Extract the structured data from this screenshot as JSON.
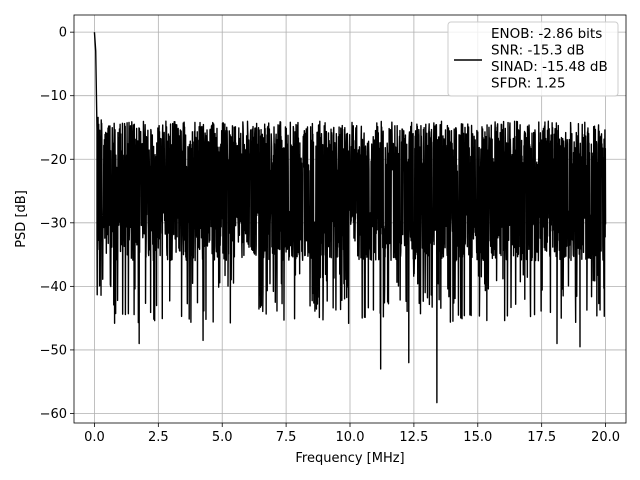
{
  "chart_data": {
    "type": "line",
    "xlabel": "Frequency [MHz]",
    "ylabel": "PSD [dB]",
    "xlim": [
      -0.8,
      20.8
    ],
    "ylim": [
      -61.5,
      2.7
    ],
    "xticks": [
      0.0,
      2.5,
      5.0,
      7.5,
      10.0,
      12.5,
      15.0,
      17.5,
      20.0
    ],
    "xtick_labels": [
      "0.0",
      "2.5",
      "5.0",
      "7.5",
      "10.0",
      "12.5",
      "15.0",
      "17.5",
      "20.0"
    ],
    "yticks": [
      0,
      -10,
      -20,
      -30,
      -40,
      -50,
      -60
    ],
    "ytick_labels": [
      "0",
      "−10",
      "−20",
      "−30",
      "−40",
      "−50",
      "−60"
    ],
    "grid": true,
    "legend_position": "top-right",
    "series": [
      {
        "name": "ENOB: -2.86 bits\nSNR: -15.3 dB\nSINAD: -15.48 dB\nSFDR: 1.25",
        "color": "#000000",
        "x_range": [
          0,
          20
        ],
        "noise_floor_band_db": [
          -36,
          -14
        ],
        "peaks": [
          {
            "x": 0.0,
            "y": 0.0
          },
          {
            "x": 0.05,
            "y": -3.0
          },
          {
            "x": 0.1,
            "y": -15.5
          }
        ],
        "deep_dips": [
          {
            "x": 1.75,
            "y": -49.0
          },
          {
            "x": 4.25,
            "y": -48.5
          },
          {
            "x": 11.2,
            "y": -53.0
          },
          {
            "x": 12.3,
            "y": -52.0
          },
          {
            "x": 13.4,
            "y": -58.3
          },
          {
            "x": 18.1,
            "y": -49.0
          },
          {
            "x": 19.0,
            "y": -49.5
          }
        ]
      }
    ],
    "legend": {
      "lines": [
        "ENOB: -2.86 bits",
        "SNR: -15.3 dB",
        "SINAD: -15.48 dB",
        "SFDR: 1.25"
      ]
    }
  }
}
